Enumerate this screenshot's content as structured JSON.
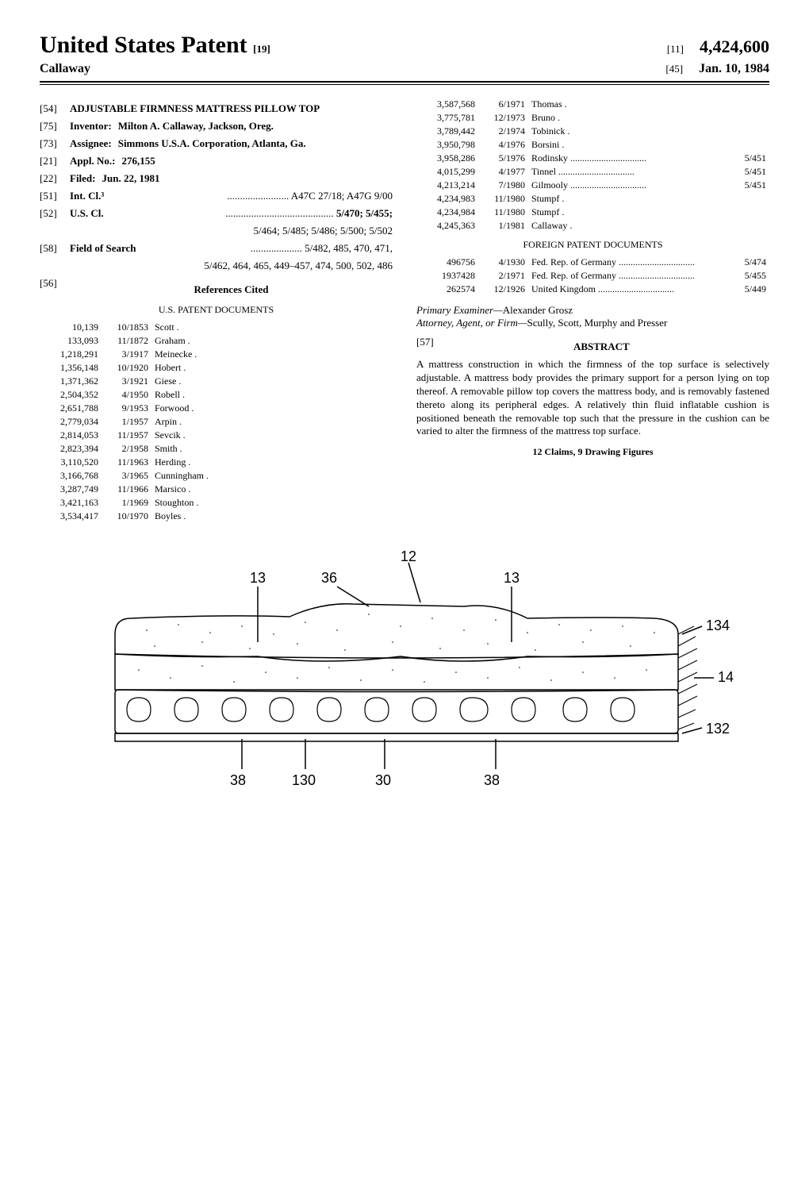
{
  "header": {
    "title": "United States Patent",
    "title_bracket": "[19]",
    "inventor_surname": "Callaway",
    "right": {
      "num_bracket": "[11]",
      "patent_number": "4,424,600",
      "date_bracket": "[45]",
      "patent_date": "Jan. 10, 1984"
    }
  },
  "left_fields": {
    "54": {
      "label": "",
      "title": "ADJUSTABLE FIRMNESS MATTRESS PILLOW TOP"
    },
    "75": {
      "label": "Inventor:",
      "value": "Milton A. Callaway, Jackson, Oreg."
    },
    "73": {
      "label": "Assignee:",
      "value": "Simmons U.S.A. Corporation, Atlanta, Ga."
    },
    "21": {
      "label": "Appl. No.:",
      "value": "276,155"
    },
    "22": {
      "label": "Filed:",
      "value": "Jun. 22, 1981"
    },
    "51": {
      "label": "Int. Cl.³",
      "value": "A47C 27/18; A47G 9/00"
    },
    "52": {
      "label": "U.S. Cl.",
      "value": "5/470; 5/455;",
      "value2": "5/464; 5/485; 5/486; 5/500; 5/502"
    },
    "58": {
      "label": "Field of Search",
      "value": "5/482, 485, 470, 471,",
      "value2": "5/462, 464, 465, 449–457, 474, 500, 502, 486"
    },
    "56": {
      "label": "References Cited"
    }
  },
  "us_patents_heading": "U.S. PATENT DOCUMENTS",
  "us_patents": [
    {
      "num": "10,139",
      "date": "10/1853",
      "name": "Scott ."
    },
    {
      "num": "133,093",
      "date": "11/1872",
      "name": "Graham ."
    },
    {
      "num": "1,218,291",
      "date": "3/1917",
      "name": "Meinecke ."
    },
    {
      "num": "1,356,148",
      "date": "10/1920",
      "name": "Hobert ."
    },
    {
      "num": "1,371,362",
      "date": "3/1921",
      "name": "Giese ."
    },
    {
      "num": "2,504,352",
      "date": "4/1950",
      "name": "Robell ."
    },
    {
      "num": "2,651,788",
      "date": "9/1953",
      "name": "Forwood ."
    },
    {
      "num": "2,779,034",
      "date": "1/1957",
      "name": "Arpin ."
    },
    {
      "num": "2,814,053",
      "date": "11/1957",
      "name": "Sevcik ."
    },
    {
      "num": "2,823,394",
      "date": "2/1958",
      "name": "Smith ."
    },
    {
      "num": "3,110,520",
      "date": "11/1963",
      "name": "Herding ."
    },
    {
      "num": "3,166,768",
      "date": "3/1965",
      "name": "Cunningham ."
    },
    {
      "num": "3,287,749",
      "date": "11/1966",
      "name": "Marsico ."
    },
    {
      "num": "3,421,163",
      "date": "1/1969",
      "name": "Stoughton ."
    },
    {
      "num": "3,534,417",
      "date": "10/1970",
      "name": "Boyles ."
    }
  ],
  "us_patents_right": [
    {
      "num": "3,587,568",
      "date": "6/1971",
      "name": "Thomas .",
      "class": ""
    },
    {
      "num": "3,775,781",
      "date": "12/1973",
      "name": "Bruno .",
      "class": ""
    },
    {
      "num": "3,789,442",
      "date": "2/1974",
      "name": "Tobinick .",
      "class": ""
    },
    {
      "num": "3,950,798",
      "date": "4/1976",
      "name": "Borsini .",
      "class": ""
    },
    {
      "num": "3,958,286",
      "date": "5/1976",
      "name": "Rodinsky",
      "class": "5/451"
    },
    {
      "num": "4,015,299",
      "date": "4/1977",
      "name": "Tinnel",
      "class": "5/451"
    },
    {
      "num": "4,213,214",
      "date": "7/1980",
      "name": "Gilmooly",
      "class": "5/451"
    },
    {
      "num": "4,234,983",
      "date": "11/1980",
      "name": "Stumpf .",
      "class": ""
    },
    {
      "num": "4,234,984",
      "date": "11/1980",
      "name": "Stumpf .",
      "class": ""
    },
    {
      "num": "4,245,363",
      "date": "1/1981",
      "name": "Callaway .",
      "class": ""
    }
  ],
  "foreign_heading": "FOREIGN PATENT DOCUMENTS",
  "foreign_patents": [
    {
      "num": "496756",
      "date": "4/1930",
      "name": "Fed. Rep. of Germany",
      "class": "5/474"
    },
    {
      "num": "1937428",
      "date": "2/1971",
      "name": "Fed. Rep. of Germany",
      "class": "5/455"
    },
    {
      "num": "262574",
      "date": "12/1926",
      "name": "United Kingdom",
      "class": "5/449"
    }
  ],
  "examiner": {
    "label": "Primary Examiner—",
    "value": "Alexander Grosz"
  },
  "attorney": {
    "label": "Attorney, Agent, or Firm—",
    "value": "Scully, Scott, Murphy and Presser"
  },
  "abstract": {
    "bracket": "[57]",
    "heading": "ABSTRACT",
    "text": "A mattress construction in which the firmness of the top surface is selectively adjustable. A mattress body provides the primary support for a person lying on top thereof. A removable pillow top covers the mattress body, and is removably fastened thereto along its peripheral edges. A relatively thin fluid inflatable cushion is positioned beneath the removable top such that the pressure in the cushion can be varied to alter the firmness of the mattress top surface."
  },
  "claims_line": "12 Claims, 9 Drawing Figures",
  "drawing": {
    "labels": [
      "12",
      "13",
      "36",
      "13",
      "134",
      "14",
      "132",
      "38",
      "130",
      "30",
      "38"
    ],
    "stroke": "#000000",
    "stroke_width": 1.5,
    "fill": "#ffffff",
    "font_family": "sans-serif",
    "label_font_size": 18
  }
}
